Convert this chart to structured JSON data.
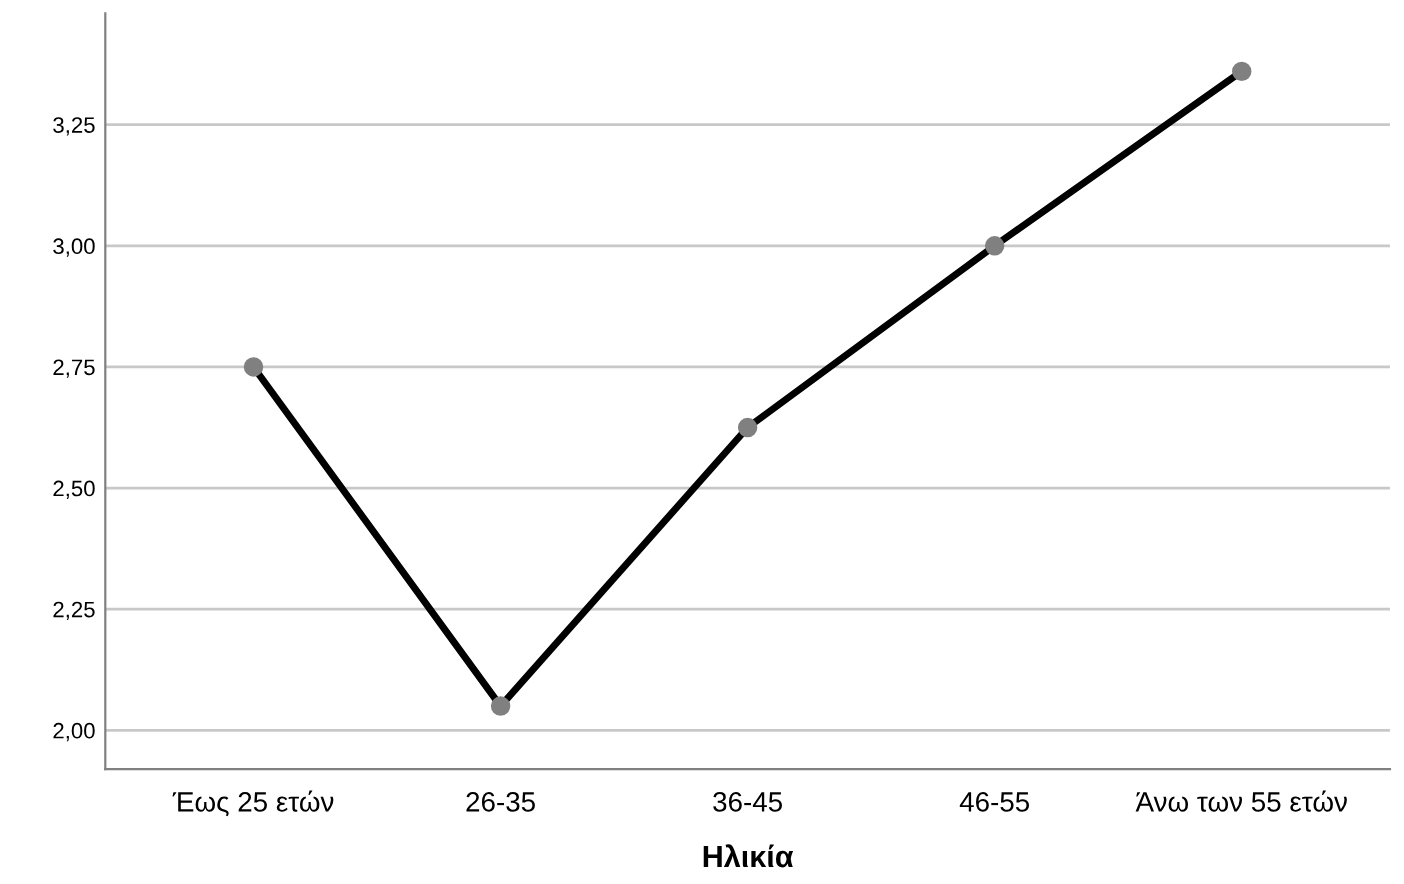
{
  "chart_data": {
    "type": "line",
    "xlabel": "Ηλικία",
    "categories": [
      "Έως 25 ετών",
      "26-35",
      "36-45",
      "46-55",
      "Άνω των 55 ετών"
    ],
    "series": [
      {
        "color": "#000000",
        "values": [
          2.75,
          2.05,
          2.625,
          3.0,
          3.36
        ]
      }
    ],
    "marker": "circle",
    "ylim": [
      1.92,
      3.48
    ],
    "yticks": [
      {
        "value": 2.0,
        "label": "2,00"
      },
      {
        "value": 2.25,
        "label": "2,25"
      },
      {
        "value": 2.5,
        "label": "2,50"
      },
      {
        "value": 2.75,
        "label": "2,75"
      },
      {
        "value": 3.0,
        "label": "3,00"
      },
      {
        "value": 3.25,
        "label": "3,25"
      }
    ],
    "grid": "y"
  }
}
